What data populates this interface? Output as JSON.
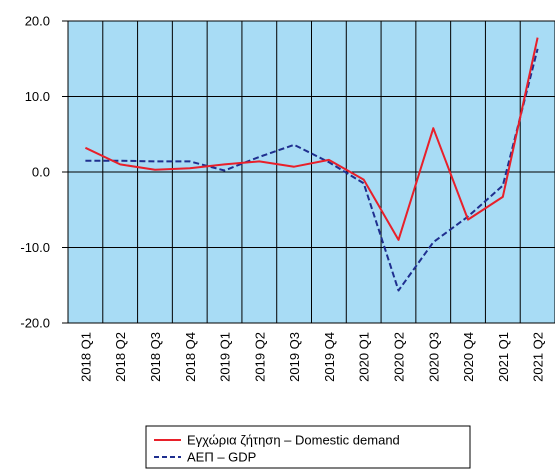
{
  "chart_data": {
    "type": "line",
    "title": "",
    "xlabel": "",
    "ylabel": "",
    "ylim": [
      -20,
      20
    ],
    "yticks": [
      "20.0",
      "10.0",
      "0.0",
      "-10.0",
      "-20.0"
    ],
    "grid": true,
    "legend_position": "bottom",
    "categories": [
      "2018 Q1",
      "2018 Q2",
      "2018 Q3",
      "2018 Q4",
      "2019 Q1",
      "2019 Q2",
      "2019 Q3",
      "2019 Q4",
      "2020 Q1",
      "2020 Q2",
      "2020 Q3",
      "2020 Q4",
      "2021 Q1",
      "2021 Q2"
    ],
    "series": [
      {
        "name": "Εγχώρια ζήτηση – Domestic demand",
        "values": [
          3.2,
          1.0,
          0.3,
          0.5,
          1.0,
          1.4,
          0.7,
          1.6,
          -1.0,
          -9.0,
          5.8,
          -6.3,
          -3.3,
          17.8
        ],
        "color": "#e8202a",
        "style": "solid"
      },
      {
        "name": "ΑΕΠ – GDP",
        "values": [
          1.5,
          1.5,
          1.4,
          1.4,
          0.2,
          2.0,
          3.6,
          1.3,
          -1.5,
          -15.7,
          -9.3,
          -5.9,
          -1.8,
          16.3
        ],
        "color": "#1f2f8f",
        "style": "dashed"
      }
    ]
  },
  "colors": {
    "plot_background": "#a8dcf5",
    "grid": "#000000"
  }
}
